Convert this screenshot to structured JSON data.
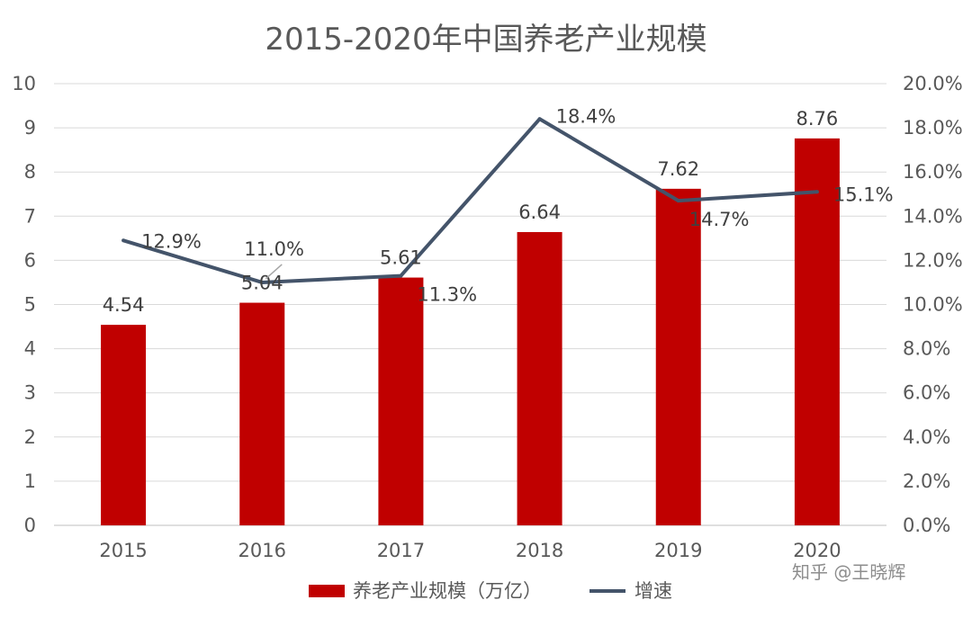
{
  "chart_data": {
    "type": "bar",
    "title": "2015-2020年中国养老产业规模",
    "categories": [
      "2015",
      "2016",
      "2017",
      "2018",
      "2019",
      "2020"
    ],
    "series": [
      {
        "name": "养老产业规模（万亿）",
        "type": "bar",
        "axis": "left",
        "values": [
          4.54,
          5.04,
          5.61,
          6.64,
          7.62,
          8.76
        ],
        "labels": [
          "4.54",
          "5.04",
          "5.61",
          "6.64",
          "7.62",
          "8.76"
        ],
        "color": "#C00000"
      },
      {
        "name": "增速",
        "type": "line",
        "axis": "right",
        "values": [
          12.9,
          11.0,
          11.3,
          18.4,
          14.7,
          15.1
        ],
        "labels": [
          "12.9%",
          "11.0%",
          "11.3%",
          "18.4%",
          "14.7%",
          "15.1%"
        ],
        "color": "#44546A"
      }
    ],
    "y_left": {
      "lim": [
        0,
        10
      ],
      "ticks": [
        "0",
        "1",
        "2",
        "3",
        "4",
        "5",
        "6",
        "7",
        "8",
        "9",
        "10"
      ]
    },
    "y_right": {
      "lim": [
        0,
        20
      ],
      "ticks": [
        "0.0%",
        "2.0%",
        "4.0%",
        "6.0%",
        "8.0%",
        "10.0%",
        "12.0%",
        "14.0%",
        "16.0%",
        "18.0%",
        "20.0%"
      ]
    },
    "grid": true,
    "legend": "bottom"
  },
  "watermark": "知乎 @王晓辉"
}
